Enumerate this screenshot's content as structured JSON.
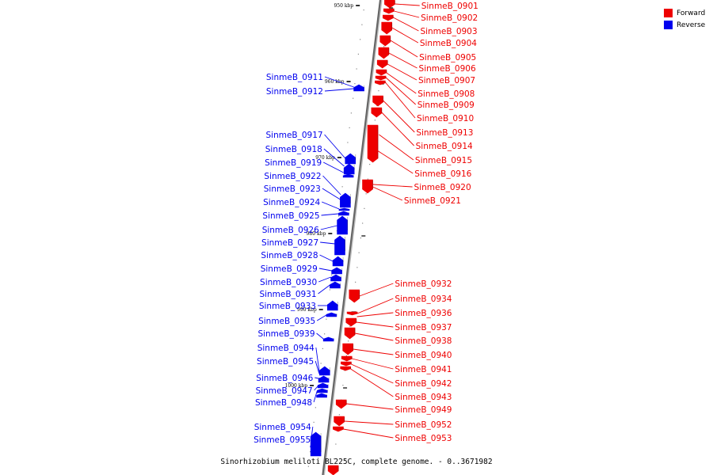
{
  "colors": {
    "forward": "#ee0000",
    "reverse": "#0000ee",
    "backbone": "#888888"
  },
  "legend": [
    {
      "label": "Forward",
      "color": "#ee0000"
    },
    {
      "label": "Reverse",
      "color": "#0000ee"
    }
  ],
  "caption": "Sinorhizobium meliloti BL225C, complete genome. - 0..3671982",
  "ticks": [
    "950 kbp",
    "960 kbp",
    "970 kbp",
    "980 kbp",
    "990 kbp",
    "1000 kbp"
  ],
  "forward_labels": [
    "SinmeB_0901",
    "SinmeB_0902",
    "SinmeB_0903",
    "SinmeB_0904",
    "SinmeB_0905",
    "SinmeB_0906",
    "SinmeB_0907",
    "SinmeB_0908",
    "SinmeB_0909",
    "SinmeB_0910",
    "SinmeB_0913",
    "SinmeB_0914",
    "SinmeB_0915",
    "SinmeB_0916",
    "SinmeB_0920",
    "SinmeB_0921",
    "SinmeB_0932",
    "SinmeB_0934",
    "SinmeB_0936",
    "SinmeB_0937",
    "SinmeB_0938",
    "SinmeB_0940",
    "SinmeB_0941",
    "SinmeB_0942",
    "SinmeB_0943",
    "SinmeB_0949",
    "SinmeB_0952",
    "SinmeB_0953"
  ],
  "reverse_labels": [
    "SinmeB_0911",
    "SinmeB_0912",
    "SinmeB_0917",
    "SinmeB_0918",
    "SinmeB_0919",
    "SinmeB_0922",
    "SinmeB_0923",
    "SinmeB_0924",
    "SinmeB_0925",
    "SinmeB_0926",
    "SinmeB_0927",
    "SinmeB_0928",
    "SinmeB_0929",
    "SinmeB_0930",
    "SinmeB_0931",
    "SinmeB_0933",
    "SinmeB_0935",
    "SinmeB_0939",
    "SinmeB_0944",
    "SinmeB_0945",
    "SinmeB_0946",
    "SinmeB_0947",
    "SinmeB_0948",
    "SinmeB_0954",
    "SinmeB_0955"
  ]
}
